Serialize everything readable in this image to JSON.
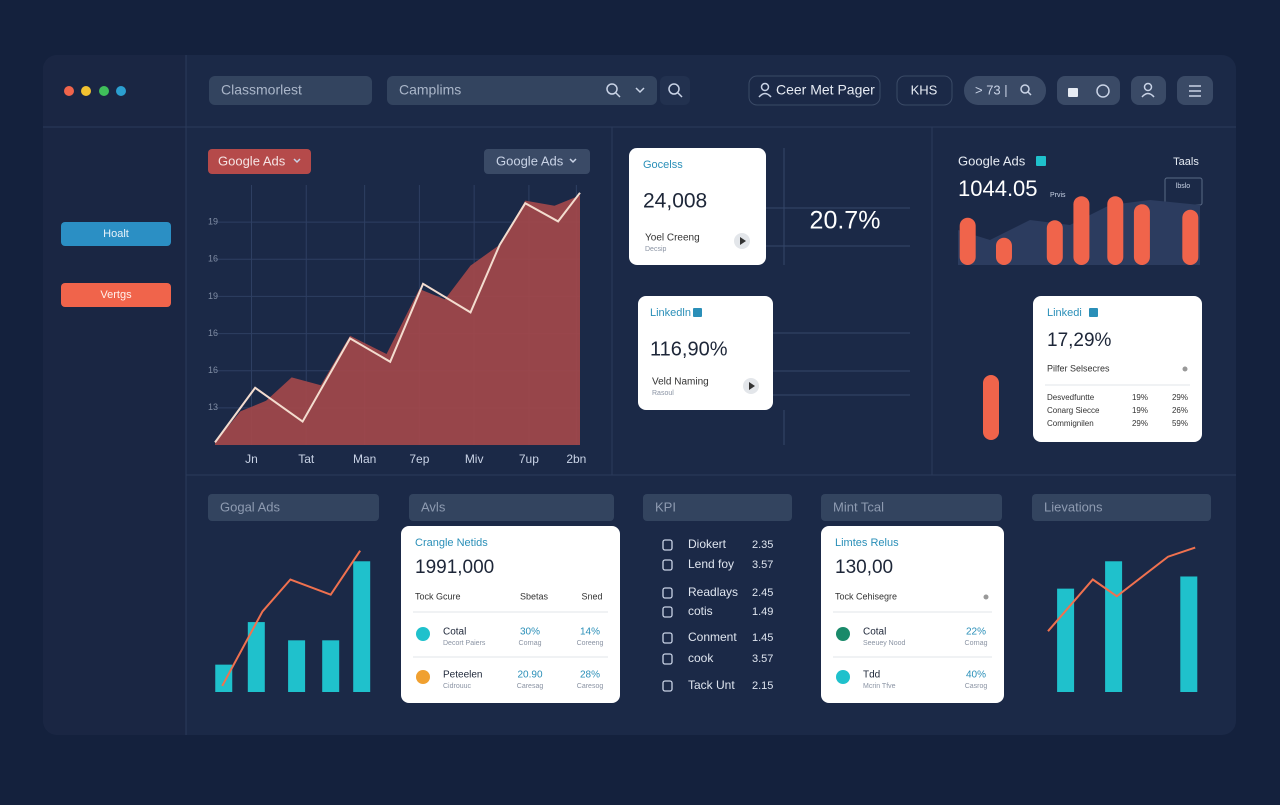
{
  "topbar": {
    "search_1": "Classmorlest",
    "search_2": "Camplims",
    "user": "Ceer Met Pager",
    "code": "KHS",
    "pill": "> 73 |"
  },
  "sidebar": {
    "buttons": [
      "Hoalt",
      "Vertgs"
    ]
  },
  "main_panel": {
    "filters": [
      "Google Ads",
      "Google Ads"
    ]
  },
  "metric_cards": [
    {
      "title": "Gocelss",
      "value": "24,008",
      "label": "Yoel Creeng",
      "sub": "Decsip"
    },
    {
      "title": "Linkedln",
      "value": "116,90%",
      "label": "Veld Naming",
      "sub": "Rasoul"
    }
  ],
  "highlight": "20.7%",
  "ads_panel": {
    "title": "Google Ads",
    "link": "Taals",
    "value": "1044.05",
    "unit": "Prvis",
    "badge": "lbslo"
  },
  "linkedin_card": {
    "title": "Linkedi",
    "value": "17,29%",
    "subtitle": "Pilfer Selsecres",
    "rows": [
      [
        "Desvedfuntte",
        "19%",
        "29%"
      ],
      [
        "Conarg Siecce",
        "19%",
        "26%"
      ],
      [
        "Commignilen",
        "29%",
        "59%"
      ]
    ]
  },
  "section_headers": [
    "Gogal Ads",
    "Avls",
    "KPI",
    "Mint Tcal",
    "Lievations"
  ],
  "tables": [
    {
      "title": "Crangle Netids",
      "value": "1991,000",
      "columns": [
        "Tock Gcure",
        "Sbetas",
        "Sned"
      ],
      "rows": [
        {
          "name": "Cotal",
          "sub": "Decort Paiers",
          "a": "30%",
          "a_sub": "Cornag",
          "b": "14%",
          "b_sub": "Coreeng"
        },
        {
          "name": "Peteelen",
          "sub": "Cidrouuc",
          "a": "20.90",
          "a_sub": "Caresag",
          "b": "28%",
          "b_sub": "Caresog"
        }
      ]
    },
    {
      "title": "Limtes Relus",
      "value": "130,00",
      "columns": [
        "Tock Cehisegre"
      ],
      "rows": [
        {
          "name": "Cotal",
          "sub": "Seeuey Nood",
          "a": "22%",
          "a_sub": "Cornag"
        },
        {
          "name": "Tdd",
          "sub": "Mcrin Tfve",
          "a": "40%",
          "a_sub": "Casrog"
        }
      ]
    }
  ],
  "kpi": [
    {
      "label": "Diokert",
      "value": "2.35"
    },
    {
      "label": "Lend foy",
      "value": "3.57"
    },
    {
      "label": "Readlays",
      "value": "2.45"
    },
    {
      "label": "cotis",
      "value": "1.49"
    },
    {
      "label": "Conment",
      "value": "1.45"
    },
    {
      "label": "cook",
      "value": "3.57"
    },
    {
      "label": "Tack Unt",
      "value": "2.15"
    }
  ],
  "chart_data": [
    {
      "type": "area",
      "grid": true,
      "y_labels": [
        "19",
        "16",
        "19",
        "16",
        "16",
        "13"
      ],
      "xlim": [
        0,
        100
      ],
      "ylim": [
        0,
        100
      ],
      "xticks": [
        {
          "value": 10,
          "label": "Jn"
        },
        {
          "value": 25,
          "label": "Tat"
        },
        {
          "value": 41,
          "label": "Man"
        },
        {
          "value": 56,
          "label": "7ep"
        },
        {
          "value": 71,
          "label": "Miv"
        },
        {
          "value": 86,
          "label": "7up"
        },
        {
          "value": 99,
          "label": "2bn"
        }
      ],
      "series": [
        {
          "type": "area",
          "color": "#a5484a",
          "x": [
            0,
            7,
            14,
            21,
            29,
            37,
            47,
            56,
            63,
            70,
            78,
            85,
            93,
            100
          ],
          "values": [
            1,
            13,
            17,
            26,
            23,
            42,
            35,
            60,
            56,
            69,
            77,
            94,
            92,
            96
          ]
        },
        {
          "type": "line",
          "color": "#f3dccf",
          "x": [
            0,
            11,
            24,
            37,
            48,
            57,
            70,
            78,
            85,
            94,
            100
          ],
          "values": [
            1,
            22,
            9,
            41,
            32,
            62,
            51,
            77,
            93,
            86,
            97
          ]
        }
      ]
    },
    {
      "type": "bar",
      "xlim": [
        0,
        100
      ],
      "ylim": [
        0,
        100
      ],
      "series": [
        {
          "type": "bar",
          "color": "#f0644b",
          "x": [
            4,
            19,
            40,
            51,
            65,
            76,
            96
          ],
          "values": [
            59,
            34,
            56,
            86,
            86,
            76,
            69
          ]
        }
      ]
    },
    {
      "type": "bar",
      "xlim": [
        0,
        100
      ],
      "ylim": [
        0,
        100
      ],
      "series": [
        {
          "type": "bar",
          "color": "#1fc1cc",
          "x": [
            5,
            26,
            52,
            74,
            94
          ],
          "values": [
            18,
            46,
            34,
            34,
            86
          ]
        },
        {
          "type": "line",
          "color": "#f0714f",
          "x": [
            4,
            30,
            48,
            74,
            93
          ],
          "values": [
            4,
            53,
            74,
            64,
            93
          ]
        }
      ]
    },
    {
      "type": "bar",
      "xlim": [
        0,
        100
      ],
      "ylim": [
        0,
        100
      ],
      "series": [
        {
          "type": "bar",
          "color": "#1fc1cc",
          "x": [
            16,
            46,
            93
          ],
          "values": [
            68,
            86,
            76
          ]
        },
        {
          "type": "line",
          "color": "#f0714f",
          "x": [
            5,
            33,
            48,
            80,
            97
          ],
          "values": [
            40,
            74,
            63,
            89,
            95
          ]
        }
      ]
    }
  ]
}
